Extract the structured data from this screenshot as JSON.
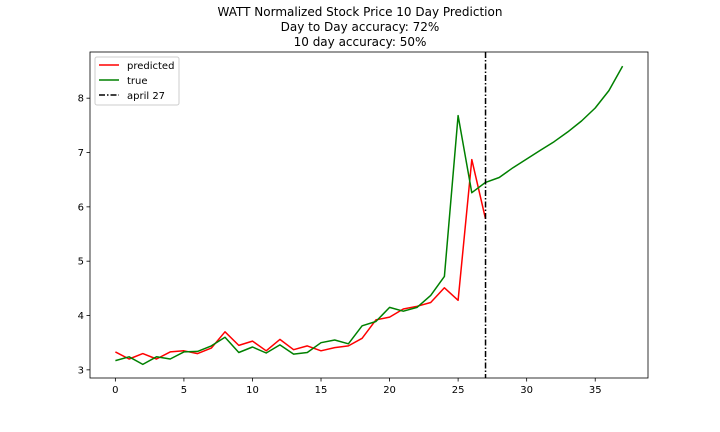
{
  "chart_data": {
    "type": "line",
    "title_lines": [
      "WATT Normalized Stock Price 10 Day Prediction",
      "Day to Day accuracy: 72%",
      "10 day accuracy: 50%"
    ],
    "xlim": [
      -1.85,
      38.85
    ],
    "ylim": [
      2.85,
      8.85
    ],
    "x_ticks": [
      0,
      5,
      10,
      15,
      20,
      25,
      30,
      35
    ],
    "y_ticks": [
      3,
      4,
      5,
      6,
      7,
      8
    ],
    "legend": {
      "placement": "top-left",
      "entries": [
        "predicted",
        "true",
        "april 27"
      ]
    },
    "series": [
      {
        "name": "predicted",
        "color": "#ff0000",
        "x": [
          0,
          1,
          2,
          3,
          4,
          5,
          6,
          7,
          8,
          9,
          10,
          11,
          12,
          13,
          14,
          15,
          16,
          17,
          18,
          19,
          20,
          21,
          22,
          23,
          24,
          25,
          26,
          27
        ],
        "values": [
          3.33,
          3.2,
          3.3,
          3.2,
          3.33,
          3.35,
          3.3,
          3.4,
          3.7,
          3.45,
          3.53,
          3.35,
          3.56,
          3.37,
          3.44,
          3.35,
          3.41,
          3.44,
          3.58,
          3.92,
          3.97,
          4.12,
          4.17,
          4.24,
          4.51,
          4.28,
          6.87,
          5.78
        ]
      },
      {
        "name": "true",
        "color": "#008000",
        "x": [
          0,
          1,
          2,
          3,
          4,
          5,
          6,
          7,
          8,
          9,
          10,
          11,
          12,
          13,
          14,
          15,
          16,
          17,
          18,
          19,
          20,
          21,
          22,
          23,
          24,
          25,
          26,
          27,
          28,
          29,
          30,
          31,
          32,
          33,
          34,
          35,
          36,
          37
        ],
        "values": [
          3.17,
          3.24,
          3.1,
          3.24,
          3.2,
          3.33,
          3.34,
          3.44,
          3.6,
          3.32,
          3.42,
          3.31,
          3.46,
          3.29,
          3.32,
          3.5,
          3.55,
          3.48,
          3.81,
          3.89,
          4.15,
          4.08,
          4.15,
          4.37,
          4.72,
          7.68,
          6.26,
          6.45,
          6.54,
          6.72,
          6.88,
          7.04,
          7.2,
          7.38,
          7.58,
          7.82,
          8.14,
          8.59
        ]
      }
    ],
    "vline": {
      "name": "april 27",
      "x": 27,
      "color": "#000000",
      "style": "dash-dot"
    }
  }
}
